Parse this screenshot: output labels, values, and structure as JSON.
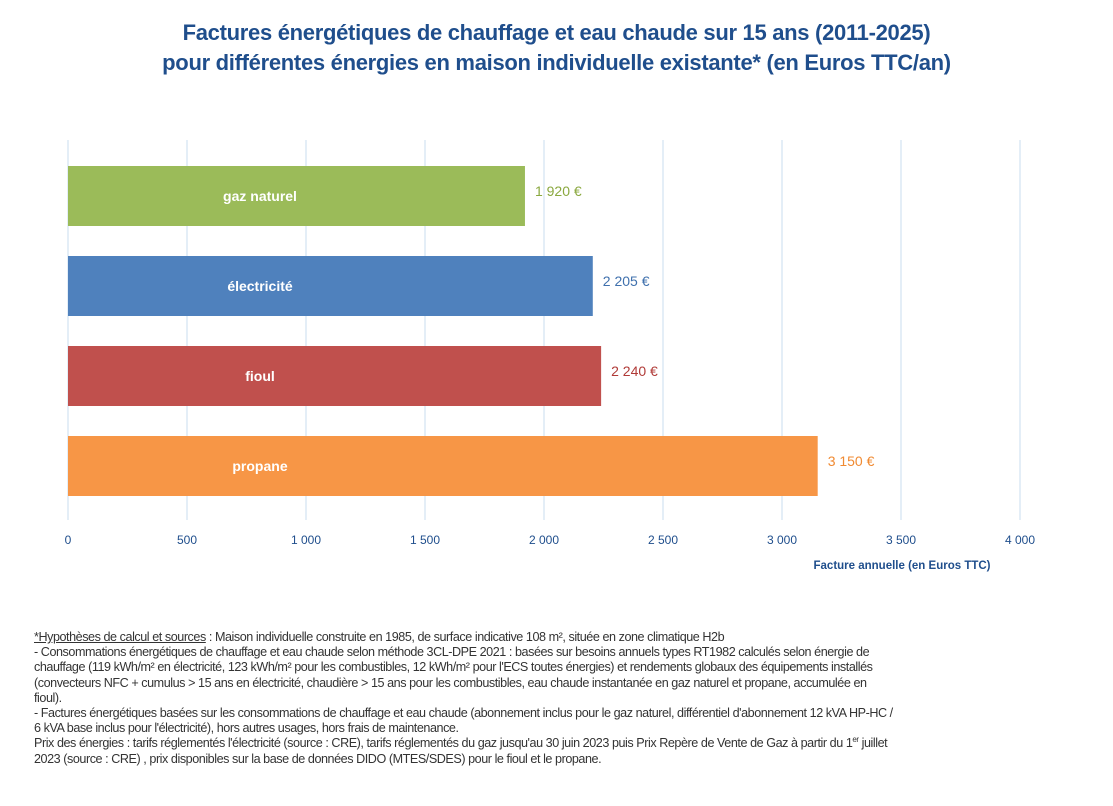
{
  "chart_data": {
    "type": "bar",
    "orientation": "horizontal",
    "title_lines": [
      "Factures énergétiques de chauffage et eau chaude sur 15 ans (2011-2025)",
      "pour différentes énergies en maison individuelle existante* (en Euros TTC/an)"
    ],
    "categories": [
      "gaz naturel",
      "électricité",
      "fioul",
      "propane"
    ],
    "values": [
      1920,
      2205,
      2240,
      3150
    ],
    "value_labels": [
      "1 920 €",
      "2 205 €",
      "2 240 €",
      "3 150 €"
    ],
    "colors": [
      "#9bbb59",
      "#4f81bd",
      "#c0504d",
      "#f79646"
    ],
    "label_colors": [
      "#8aa83f",
      "#3f70ad",
      "#b03a37",
      "#f08a32"
    ],
    "xlabel": "Facture annuelle (en Euros TTC)",
    "xlim": [
      0,
      4000
    ],
    "xticks": [
      0,
      500,
      1000,
      1500,
      2000,
      2500,
      3000,
      3500,
      4000
    ],
    "xtick_labels": [
      "0",
      "500",
      "1 000",
      "1 500",
      "2 000",
      "2 500",
      "3 000",
      "3 500",
      "4 000"
    ],
    "grid": "vertical",
    "legend": "none"
  },
  "notes": {
    "hyp_label": "*Hypothèses de calcul et sources",
    "hyp_text": " : Maison individuelle construite en 1985, de surface indicative 108 m², située en zone climatique H2b",
    "l2": "- Consommations énergétiques de chauffage et eau chaude selon méthode 3CL-DPE 2021 : basées sur besoins annuels types RT1982 calculés selon énergie de",
    "l3": "chauffage (119 kWh/m² en électricité, 123 kWh/m² pour les combustibles, 12 kWh/m² pour l'ECS toutes énergies) et rendements globaux des équipements installés",
    "l4": "(convecteurs NFC + cumulus > 15 ans en électricité, chaudière > 15 ans pour les combustibles, eau chaude instantanée en gaz naturel et propane, accumulée en",
    "l5": "fioul).",
    "l6": "- Factures énergétiques basées sur les consommations de chauffage et eau chaude (abonnement inclus pour le gaz naturel, différentiel d'abonnement 12 kVA HP-HC /",
    "l7": "6 kVA base inclus pour l'électricité), hors autres usages, hors frais de maintenance.",
    "l8a": "Prix des énergies : tarifs réglementés l'électricité (source : CRE), tarifs réglementés du gaz jusqu'au 30 juin 2023 puis Prix Repère de Vente de Gaz à partir du 1",
    "l8sup": "er",
    "l8b": " juillet",
    "l9": "2023 (source : CRE) , prix disponibles sur la base de données DIDO (MTES/SDES) pour le fioul et le propane."
  }
}
